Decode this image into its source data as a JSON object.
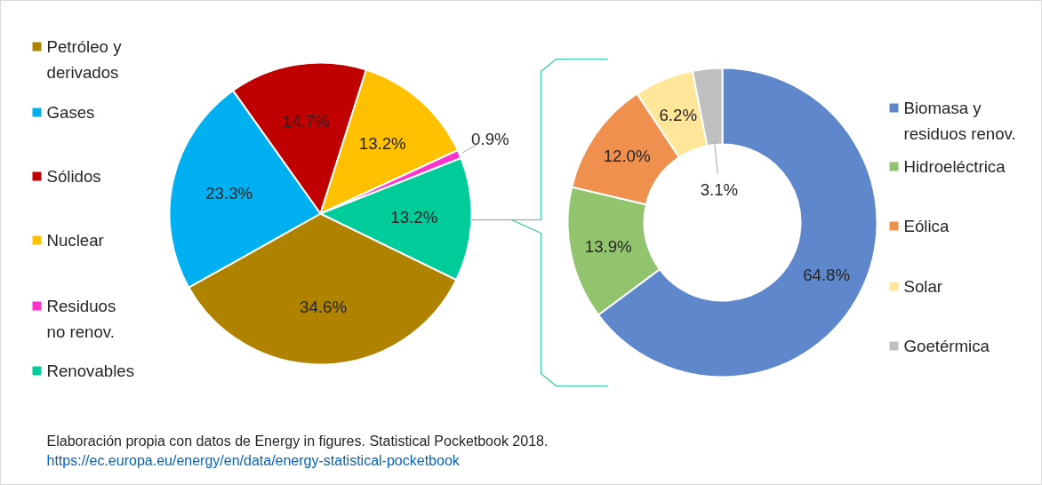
{
  "chart_data": [
    {
      "type": "pie",
      "categories": [
        "Petróleo y\nderivados",
        "Gases",
        "Sólidos",
        "Nuclear",
        "Residuos\nno renov.",
        "Renovables"
      ],
      "values": [
        34.6,
        23.3,
        14.7,
        13.2,
        0.9,
        13.2
      ],
      "colors": [
        "#af8300",
        "#00b0f0",
        "#c00000",
        "#ffc000",
        "#ff33cc",
        "#00cc99"
      ],
      "value_labels": [
        "34.6%",
        "23.3%",
        "14.7%",
        "13.2%",
        "0.9%",
        "13.2%"
      ],
      "legend": "left",
      "annotations": [
        "Elaboración propia con datos de Energy in figures. Statistical Pocketbook 2018.",
        "https://ec.europa.eu/energy/en/data/energy-statistical-pocketbook"
      ]
    },
    {
      "type": "donut",
      "categories": [
        "Biomasa y\nresiduos renov.",
        "Hidroeléctrica",
        "Eólica",
        "Solar",
        "Goetérmica"
      ],
      "values": [
        64.8,
        13.9,
        12.0,
        6.2,
        3.1
      ],
      "colors": [
        "#5f87cc",
        "#92c46e",
        "#f0904f",
        "#ffe699",
        "#c0c0c0"
      ],
      "value_labels": [
        "64.8%",
        "13.9%",
        "12.0%",
        "6.2%",
        "3.1%"
      ],
      "legend": "right"
    }
  ]
}
